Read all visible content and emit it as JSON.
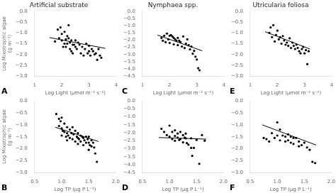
{
  "chart_data": [
    {
      "type": "scatter",
      "title": "Artificial substrate",
      "x_label": "Log Light (μmol m⁻² s⁻¹)",
      "y_label": "Log Mixotrophic algae\n(g m⁻²)",
      "annotations": [
        "A"
      ],
      "grid": false,
      "xlim": [
        1,
        4
      ],
      "xticks": [
        1,
        2,
        3,
        4
      ],
      "ylim": [
        -3.0,
        0.0
      ],
      "yticks": [
        {
          "value": 0.0,
          "label": "0.0"
        },
        {
          "value": -0.5,
          "label": "−0.5"
        },
        {
          "value": -1.0,
          "label": "−1.0"
        },
        {
          "value": -1.5,
          "label": "−1.5"
        },
        {
          "value": -2.0,
          "label": "−2.0"
        },
        {
          "value": -2.5,
          "label": "−2.5"
        },
        {
          "value": -3.0,
          "label": "−3.0"
        }
      ],
      "series": [
        {
          "type": "scatter",
          "color": "#000000",
          "x": [
            1.75,
            1.85,
            1.9,
            1.95,
            2.0,
            2.0,
            2.05,
            2.1,
            2.1,
            2.15,
            2.15,
            2.2,
            2.2,
            2.25,
            2.25,
            2.3,
            2.3,
            2.35,
            2.35,
            2.4,
            2.4,
            2.45,
            2.5,
            2.5,
            2.55,
            2.6,
            2.65,
            2.7,
            2.75,
            2.8,
            2.85,
            2.9,
            2.95,
            3.0,
            3.0,
            3.05,
            3.1,
            3.15,
            3.2,
            3.25,
            3.3,
            3.35,
            3.4,
            3.45
          ],
          "values": [
            -1.4,
            -0.85,
            -1.25,
            -0.75,
            -1.05,
            -1.35,
            -1.65,
            -0.95,
            -1.5,
            -1.3,
            -1.65,
            -1.15,
            -1.5,
            -0.65,
            -1.25,
            -1.45,
            -1.75,
            -1.35,
            -1.85,
            -1.55,
            -1.95,
            -1.55,
            -1.35,
            -1.65,
            -1.75,
            -1.45,
            -1.55,
            -1.95,
            -1.65,
            -2.05,
            -1.75,
            -1.5,
            -1.95,
            -1.6,
            -1.85,
            -2.05,
            -1.75,
            -1.85,
            -2.0,
            -1.95,
            -2.25,
            -1.75,
            -2.05,
            -2.15
          ]
        },
        {
          "type": "line",
          "color": "#000000",
          "x": [
            1.55,
            3.6
          ],
          "values": [
            -1.22,
            -1.72
          ]
        }
      ]
    },
    {
      "type": "scatter",
      "title": "Nymphaea spp.",
      "x_label": "Log Light (μmol m⁻² s⁻¹)",
      "annotations": [
        "C"
      ],
      "grid": false,
      "xlim": [
        1,
        4
      ],
      "xticks": [
        1,
        2,
        3,
        4
      ],
      "ylim": [
        -4.5,
        0.0
      ],
      "yticks": [
        {
          "value": 0.0,
          "label": "0.0"
        },
        {
          "value": -0.5,
          "label": "−0.5"
        },
        {
          "value": -1.0,
          "label": "−1.0"
        },
        {
          "value": -1.5,
          "label": "−1.5"
        },
        {
          "value": -2.0,
          "label": "−2.0"
        },
        {
          "value": -2.5,
          "label": "−2.5"
        },
        {
          "value": -3.0,
          "label": "−3.0"
        },
        {
          "value": -3.5,
          "label": "−3.5"
        },
        {
          "value": -4.0,
          "label": "−4.0"
        },
        {
          "value": -4.5,
          "label": "−4.5"
        }
      ],
      "series": [
        {
          "type": "scatter",
          "color": "#000000",
          "x": [
            1.7,
            1.75,
            1.8,
            1.85,
            1.9,
            1.95,
            2.0,
            2.0,
            2.05,
            2.1,
            2.15,
            2.15,
            2.2,
            2.25,
            2.3,
            2.3,
            2.35,
            2.4,
            2.45,
            2.5,
            2.55,
            2.6,
            2.65,
            2.7,
            2.75,
            2.8,
            2.85,
            2.9,
            2.95,
            3.0,
            3.05,
            3.1
          ],
          "values": [
            -1.85,
            -2.05,
            -1.7,
            -2.15,
            -1.55,
            -1.95,
            -1.7,
            -2.2,
            -1.65,
            -1.75,
            -1.85,
            -2.3,
            -1.95,
            -2.05,
            -1.85,
            -2.35,
            -2.05,
            -2.15,
            -2.45,
            -1.75,
            -2.55,
            -2.25,
            -1.95,
            -2.35,
            -2.65,
            -2.45,
            -2.95,
            -2.75,
            -3.15,
            -3.35,
            -3.95,
            -4.1
          ]
        },
        {
          "type": "line",
          "color": "#000000",
          "x": [
            1.55,
            3.2
          ],
          "values": [
            -1.65,
            -2.75
          ]
        }
      ]
    },
    {
      "type": "scatter",
      "title": "Utricularia foliosa",
      "x_label": "Log Light (μmol m⁻² s⁻¹)",
      "annotations": [
        "E"
      ],
      "grid": false,
      "xlim": [
        1,
        4
      ],
      "xticks": [
        1,
        2,
        3,
        4
      ],
      "ylim": [
        -3.0,
        0.0
      ],
      "yticks": [
        {
          "value": 0.0,
          "label": "0.0"
        },
        {
          "value": -0.5,
          "label": "−0.5"
        },
        {
          "value": -1.0,
          "label": "−1.0"
        },
        {
          "value": -1.5,
          "label": "−1.5"
        },
        {
          "value": -2.0,
          "label": "−2.0"
        },
        {
          "value": -2.5,
          "label": "−2.5"
        },
        {
          "value": -3.0,
          "label": "−3.0"
        }
      ],
      "series": [
        {
          "type": "scatter",
          "color": "#000000",
          "x": [
            1.7,
            1.75,
            1.8,
            1.85,
            1.9,
            1.95,
            2.0,
            2.05,
            2.1,
            2.15,
            2.2,
            2.25,
            2.3,
            2.35,
            2.4,
            2.45,
            2.5,
            2.55,
            2.6,
            2.65,
            2.7,
            2.75,
            2.8,
            2.85,
            2.9,
            2.95,
            3.0,
            3.05,
            3.1,
            3.15
          ],
          "values": [
            -1.0,
            -0.75,
            -1.2,
            -0.65,
            -1.4,
            -1.1,
            -0.9,
            -1.3,
            -1.2,
            -1.5,
            -1.15,
            -1.35,
            -1.55,
            -1.45,
            -1.6,
            -1.25,
            -1.7,
            -1.45,
            -1.6,
            -1.75,
            -1.55,
            -1.7,
            -1.85,
            -1.95,
            -1.75,
            -1.65,
            -1.95,
            -1.8,
            -2.45,
            -1.85
          ]
        },
        {
          "type": "line",
          "color": "#000000",
          "x": [
            1.55,
            3.2
          ],
          "values": [
            -0.95,
            -1.75
          ]
        }
      ]
    },
    {
      "type": "scatter",
      "x_label": "Log TP (μg P L⁻¹)",
      "y_label": "Log Mixotrophic algae\n(g m⁻²)",
      "annotations": [
        "B"
      ],
      "grid": false,
      "xlim": [
        0.5,
        2.0
      ],
      "xticks": [
        {
          "value": 0.5,
          "label": "0.5"
        },
        {
          "value": 1.0,
          "label": "1.0"
        },
        {
          "value": 1.5,
          "label": "1.5"
        },
        {
          "value": 2.0,
          "label": "2.0"
        }
      ],
      "ylim": [
        -3.0,
        0.0
      ],
      "yticks": [
        {
          "value": 0.0,
          "label": "0.0"
        },
        {
          "value": -0.5,
          "label": "−0.5"
        },
        {
          "value": -1.0,
          "label": "−1.0"
        },
        {
          "value": -1.5,
          "label": "−1.5"
        },
        {
          "value": -2.0,
          "label": "−2.0"
        },
        {
          "value": -2.5,
          "label": "−2.5"
        },
        {
          "value": -3.0,
          "label": "−3.0"
        }
      ],
      "series": [
        {
          "type": "scatter",
          "color": "#000000",
          "x": [
            0.9,
            0.95,
            0.95,
            0.98,
            1.0,
            1.0,
            1.0,
            1.02,
            1.05,
            1.05,
            1.08,
            1.1,
            1.1,
            1.1,
            1.12,
            1.15,
            1.15,
            1.18,
            1.2,
            1.2,
            1.22,
            1.25,
            1.25,
            1.28,
            1.3,
            1.3,
            1.3,
            1.32,
            1.35,
            1.35,
            1.38,
            1.4,
            1.4,
            1.42,
            1.45,
            1.45,
            1.48,
            1.5,
            1.5,
            1.5,
            1.52,
            1.55,
            1.55,
            1.58,
            1.6,
            1.62,
            1.65
          ],
          "values": [
            -0.55,
            -0.75,
            -1.05,
            -0.85,
            -0.7,
            -1.15,
            -1.45,
            -1.25,
            -0.95,
            -1.3,
            -1.5,
            -1.1,
            -1.35,
            -1.65,
            -1.45,
            -1.2,
            -1.55,
            -1.35,
            -1.1,
            -1.6,
            -1.4,
            -1.25,
            -1.7,
            -1.5,
            -1.35,
            -1.55,
            -1.8,
            -1.6,
            -1.45,
            -1.7,
            -1.5,
            -1.55,
            -1.85,
            -1.65,
            -1.5,
            -1.75,
            -1.6,
            -1.5,
            -1.75,
            -2.05,
            -1.85,
            -1.65,
            -1.9,
            -1.75,
            -1.95,
            -2.2,
            -2.55
          ]
        },
        {
          "type": "line",
          "color": "#000000",
          "x": [
            0.88,
            1.68
          ],
          "values": [
            -1.1,
            -1.7
          ]
        }
      ]
    },
    {
      "type": "scatter",
      "x_label": "Log TP (μg P L⁻¹)",
      "annotations": [
        "D"
      ],
      "grid": false,
      "xlim": [
        0.5,
        2.0
      ],
      "xticks": [
        {
          "value": 0.5,
          "label": "0.5"
        },
        {
          "value": 1.0,
          "label": "1.0"
        },
        {
          "value": 1.5,
          "label": "1.5"
        },
        {
          "value": 2.0,
          "label": "2.0"
        }
      ],
      "ylim": [
        -4.5,
        0.0
      ],
      "yticks": [
        {
          "value": 0.0,
          "label": "0.0"
        },
        {
          "value": -0.5,
          "label": "−0.5"
        },
        {
          "value": -1.0,
          "label": "−1.0"
        },
        {
          "value": -1.5,
          "label": "−1.5"
        },
        {
          "value": -2.0,
          "label": "−2.0"
        },
        {
          "value": -2.5,
          "label": "−2.5"
        },
        {
          "value": -3.0,
          "label": "−3.0"
        },
        {
          "value": -3.5,
          "label": "−3.5"
        },
        {
          "value": -4.0,
          "label": "−4.0"
        },
        {
          "value": -4.5,
          "label": "−4.5"
        }
      ],
      "series": [
        {
          "type": "scatter",
          "color": "#000000",
          "x": [
            0.85,
            0.9,
            0.95,
            1.0,
            1.0,
            1.05,
            1.05,
            1.1,
            1.1,
            1.1,
            1.15,
            1.15,
            1.18,
            1.2,
            1.2,
            1.25,
            1.25,
            1.28,
            1.3,
            1.3,
            1.32,
            1.35,
            1.4,
            1.4,
            1.42,
            1.45,
            1.5,
            1.55,
            1.6,
            1.65
          ],
          "values": [
            -1.75,
            -1.95,
            -2.15,
            -1.55,
            -2.25,
            -1.95,
            -2.4,
            -1.85,
            -2.2,
            -2.5,
            -2.05,
            -2.3,
            -2.45,
            -1.95,
            -2.4,
            -2.15,
            -2.6,
            -2.3,
            -2.05,
            -2.35,
            -2.65,
            -2.75,
            -2.95,
            -2.35,
            -3.45,
            -2.95,
            -2.45,
            -3.95,
            -2.15,
            -2.5
          ]
        },
        {
          "type": "line",
          "color": "#000000",
          "x": [
            0.8,
            1.68
          ],
          "values": [
            -2.3,
            -2.4
          ]
        }
      ]
    },
    {
      "type": "scatter",
      "x_label": "Log TP (μg P L⁻¹)",
      "annotations": [
        "F"
      ],
      "grid": false,
      "xlim": [
        0.5,
        2.0
      ],
      "xticks": [
        {
          "value": 0.5,
          "label": "0.5"
        },
        {
          "value": 1.0,
          "label": "1.0"
        },
        {
          "value": 1.5,
          "label": "1.5"
        },
        {
          "value": 2.0,
          "label": "2.0"
        }
      ],
      "ylim": [
        -3.0,
        0.0
      ],
      "yticks": [
        {
          "value": 0.0,
          "label": "0.0"
        },
        {
          "value": -0.5,
          "label": "−0.5"
        },
        {
          "value": -1.0,
          "label": "−1.0"
        },
        {
          "value": -1.5,
          "label": "−1.5"
        },
        {
          "value": -2.0,
          "label": "−2.0"
        },
        {
          "value": -2.5,
          "label": "−2.5"
        },
        {
          "value": -3.0,
          "label": "−3.0"
        }
      ],
      "series": [
        {
          "type": "scatter",
          "color": "#000000",
          "x": [
            0.75,
            0.8,
            0.85,
            0.9,
            0.95,
            1.0,
            1.0,
            1.05,
            1.05,
            1.1,
            1.15,
            1.15,
            1.2,
            1.2,
            1.25,
            1.25,
            1.3,
            1.3,
            1.35,
            1.4,
            1.4,
            1.45,
            1.5,
            1.55,
            1.6,
            1.65,
            1.7
          ],
          "values": [
            -1.55,
            -1.6,
            -1.7,
            -1.35,
            -1.55,
            -0.9,
            -1.45,
            -1.2,
            -1.65,
            -1.45,
            -1.5,
            -1.7,
            -1.4,
            -1.65,
            -1.5,
            -1.75,
            -1.55,
            -1.8,
            -1.55,
            -1.7,
            -1.9,
            -1.85,
            -1.75,
            -1.95,
            -2.05,
            -2.55,
            -2.6
          ]
        },
        {
          "type": "line",
          "color": "#000000",
          "x": [
            0.72,
            1.72
          ],
          "values": [
            -1.0,
            -1.85
          ]
        }
      ]
    }
  ]
}
